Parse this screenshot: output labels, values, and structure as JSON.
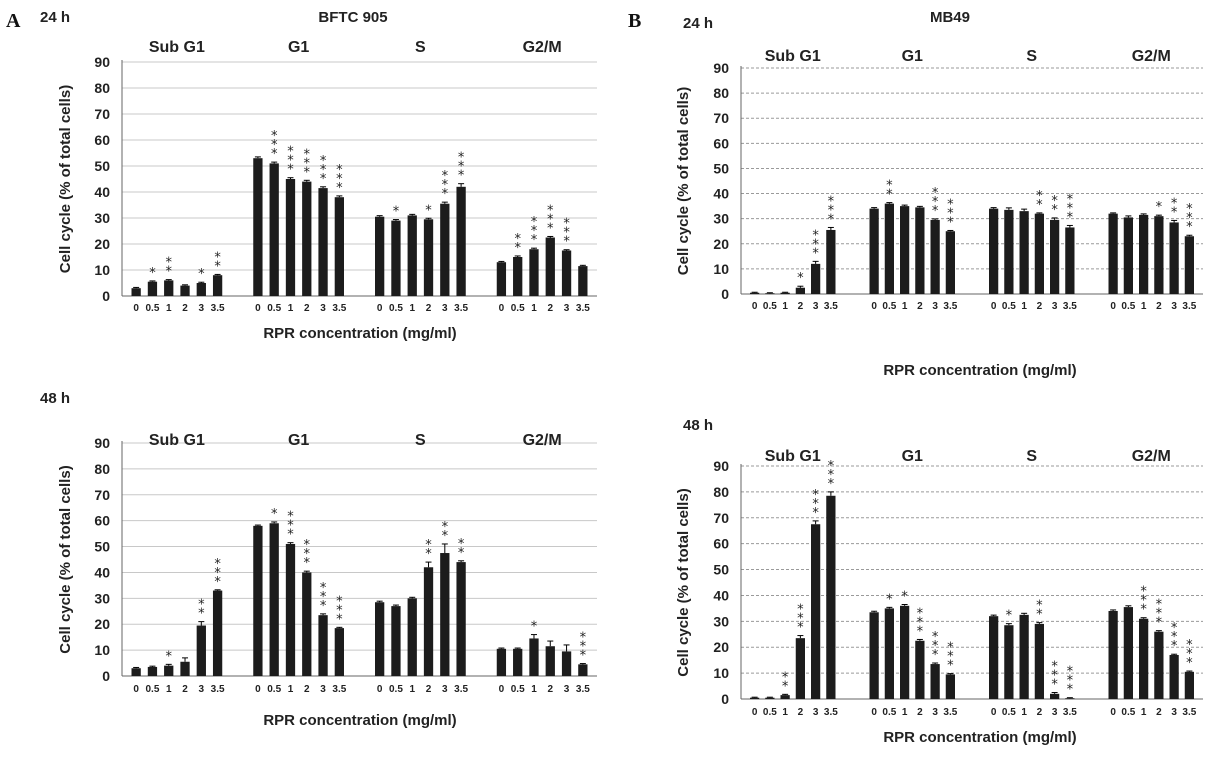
{
  "figure": {
    "panel_labels": [
      "A",
      "B"
    ],
    "colors": {
      "bar": "#1c1c1c",
      "grid_A": "#c8c8c8",
      "grid_B": "#9a9a9a",
      "axis": "#666666"
    }
  },
  "chart_data": [
    {
      "type": "bar",
      "panel": "A",
      "time_label": "24 h",
      "title": "BFTC 905",
      "groups": [
        "Sub G1",
        "G1",
        "S",
        "G2/M"
      ],
      "categories": [
        "0",
        "0.5",
        "1",
        "2",
        "3",
        "3.5"
      ],
      "series": [
        {
          "group": "Sub G1",
          "values": [
            3,
            5.5,
            6,
            4,
            5,
            8
          ],
          "errors": [
            0.3,
            0.3,
            0.3,
            0.3,
            0.3,
            0.3
          ],
          "significance": [
            "",
            "*",
            "**",
            "",
            "*",
            "**"
          ]
        },
        {
          "group": "G1",
          "values": [
            53,
            51,
            45,
            44,
            41.5,
            38
          ],
          "errors": [
            0.5,
            0.5,
            0.5,
            0.5,
            0.5,
            0.5
          ],
          "significance": [
            "",
            "***",
            "***",
            "***",
            "***",
            "***"
          ]
        },
        {
          "group": "S",
          "values": [
            30.5,
            29,
            31,
            29.5,
            35.5,
            42
          ],
          "errors": [
            0.4,
            0.4,
            0.4,
            0.4,
            0.6,
            1.2
          ],
          "significance": [
            "",
            "*",
            "",
            "*",
            "***",
            "***"
          ]
        },
        {
          "group": "G2/M",
          "values": [
            13,
            15,
            18,
            22.5,
            17.5,
            11.5
          ],
          "errors": [
            0.3,
            0.4,
            0.4,
            0.4,
            0.3,
            0.3
          ],
          "significance": [
            "",
            "**",
            "***",
            "***",
            "***",
            ""
          ]
        }
      ],
      "ylabel": "Cell cycle (% of total cells)",
      "xlabel": "RPR concentration  (mg/ml)",
      "ylim": [
        0,
        90
      ],
      "yticks": [
        0,
        10,
        20,
        30,
        40,
        50,
        60,
        70,
        80,
        90
      ],
      "grid": true
    },
    {
      "type": "bar",
      "panel": "A",
      "time_label": "48 h",
      "title": "",
      "groups": [
        "Sub G1",
        "G1",
        "S",
        "G2/M"
      ],
      "categories": [
        "0",
        "0.5",
        "1",
        "2",
        "3",
        "3.5"
      ],
      "series": [
        {
          "group": "Sub G1",
          "values": [
            3,
            3.5,
            4,
            5.5,
            19.5,
            33
          ],
          "errors": [
            0.3,
            0.3,
            0.5,
            1.5,
            1.5,
            0.3
          ],
          "significance": [
            "",
            "",
            "*",
            "",
            "**",
            "***"
          ]
        },
        {
          "group": "G1",
          "values": [
            58,
            59,
            51,
            40,
            23.5,
            18.5
          ],
          "errors": [
            0.3,
            0.5,
            0.5,
            0.5,
            0.5,
            0.3
          ],
          "significance": [
            "",
            "*",
            "***",
            "***",
            "***",
            "***"
          ]
        },
        {
          "group": "S",
          "values": [
            28.5,
            27,
            30,
            42,
            47.5,
            44
          ],
          "errors": [
            0.4,
            0.4,
            0.4,
            2,
            3.5,
            0.5
          ],
          "significance": [
            "",
            "",
            "",
            "**",
            "**",
            "**"
          ]
        },
        {
          "group": "G2/M",
          "values": [
            10.5,
            10.5,
            14.5,
            11.5,
            9.5,
            4.5
          ],
          "errors": [
            0.3,
            0.3,
            1.5,
            2,
            2.5,
            0.3
          ],
          "significance": [
            "",
            "",
            "*",
            "",
            "",
            "***"
          ]
        }
      ],
      "ylabel": "Cell cycle (% of total cells)",
      "xlabel": "RPR concentration  (mg/ml)",
      "ylim": [
        0,
        90
      ],
      "yticks": [
        0,
        10,
        20,
        30,
        40,
        50,
        60,
        70,
        80,
        90
      ],
      "grid": true
    },
    {
      "type": "bar",
      "panel": "B",
      "time_label": "24 h",
      "title": "MB49",
      "groups": [
        "Sub G1",
        "G1",
        "S",
        "G2/M"
      ],
      "categories": [
        "0",
        "0.5",
        "1",
        "2",
        "3",
        "3.5"
      ],
      "series": [
        {
          "group": "Sub G1",
          "values": [
            0.5,
            0.3,
            0.5,
            2.5,
            12,
            25.5
          ],
          "errors": [
            0.2,
            0.2,
            0.2,
            0.6,
            1,
            1
          ],
          "significance": [
            "",
            "",
            "",
            "*",
            "***",
            "***"
          ]
        },
        {
          "group": "G1",
          "values": [
            34,
            36,
            35,
            34.5,
            29.5,
            25
          ],
          "errors": [
            0.4,
            0.4,
            0.4,
            0.4,
            0.4,
            0.3
          ],
          "significance": [
            "",
            "**",
            "",
            "",
            "***",
            "***"
          ]
        },
        {
          "group": "S",
          "values": [
            34,
            33.5,
            33,
            32,
            29.5,
            26.5
          ],
          "errors": [
            0.4,
            0.8,
            0.8,
            0.3,
            0.8,
            0.8
          ],
          "significance": [
            "",
            "",
            "",
            "**",
            "**",
            "***"
          ]
        },
        {
          "group": "G2/M",
          "values": [
            32,
            30.5,
            31.5,
            31,
            28.5,
            23
          ],
          "errors": [
            0.3,
            0.6,
            0.4,
            0.4,
            0.8,
            0.4
          ],
          "significance": [
            "",
            "",
            "",
            "*",
            "**",
            "***"
          ]
        }
      ],
      "ylabel": "Cell cycle (% of total cells)",
      "xlabel": "RPR concentration  (mg/ml)",
      "ylim": [
        0,
        90
      ],
      "yticks": [
        0,
        10,
        20,
        30,
        40,
        50,
        60,
        70,
        80,
        90
      ],
      "grid": true
    },
    {
      "type": "bar",
      "panel": "B",
      "time_label": "48 h",
      "title": "",
      "groups": [
        "Sub G1",
        "G1",
        "S",
        "G2/M"
      ],
      "categories": [
        "0",
        "0.5",
        "1",
        "2",
        "3",
        "3.5"
      ],
      "series": [
        {
          "group": "Sub G1",
          "values": [
            0.5,
            0.5,
            1.5,
            23.5,
            67.5,
            78.5
          ],
          "errors": [
            0.2,
            0.2,
            0.3,
            1,
            1.3,
            1.5
          ],
          "significance": [
            "",
            "",
            "**",
            "***",
            "***",
            "***"
          ]
        },
        {
          "group": "G1",
          "values": [
            33.5,
            35,
            36,
            22.5,
            13.5,
            9.5
          ],
          "errors": [
            0.4,
            0.4,
            0.5,
            0.5,
            0.4,
            0.3
          ],
          "significance": [
            "",
            "*",
            "*",
            "***",
            "***",
            "***"
          ]
        },
        {
          "group": "S",
          "values": [
            32,
            28.5,
            32.5,
            29,
            2,
            0.3
          ],
          "errors": [
            0.4,
            0.6,
            0.6,
            0.5,
            0.5,
            0.2
          ],
          "significance": [
            "",
            "*",
            "",
            "**",
            "***",
            "***"
          ]
        },
        {
          "group": "G2/M",
          "values": [
            34,
            35.5,
            31,
            26,
            17,
            10.5
          ],
          "errors": [
            0.4,
            0.5,
            0.4,
            0.4,
            0.3,
            0.3
          ],
          "significance": [
            "",
            "",
            "***",
            "***",
            "***",
            "***"
          ]
        }
      ],
      "ylabel": "Cell cycle (% of total cells)",
      "xlabel": "RPR concentration  (mg/ml)",
      "ylim": [
        0,
        90
      ],
      "yticks": [
        0,
        10,
        20,
        30,
        40,
        50,
        60,
        70,
        80,
        90
      ],
      "grid": true
    }
  ]
}
